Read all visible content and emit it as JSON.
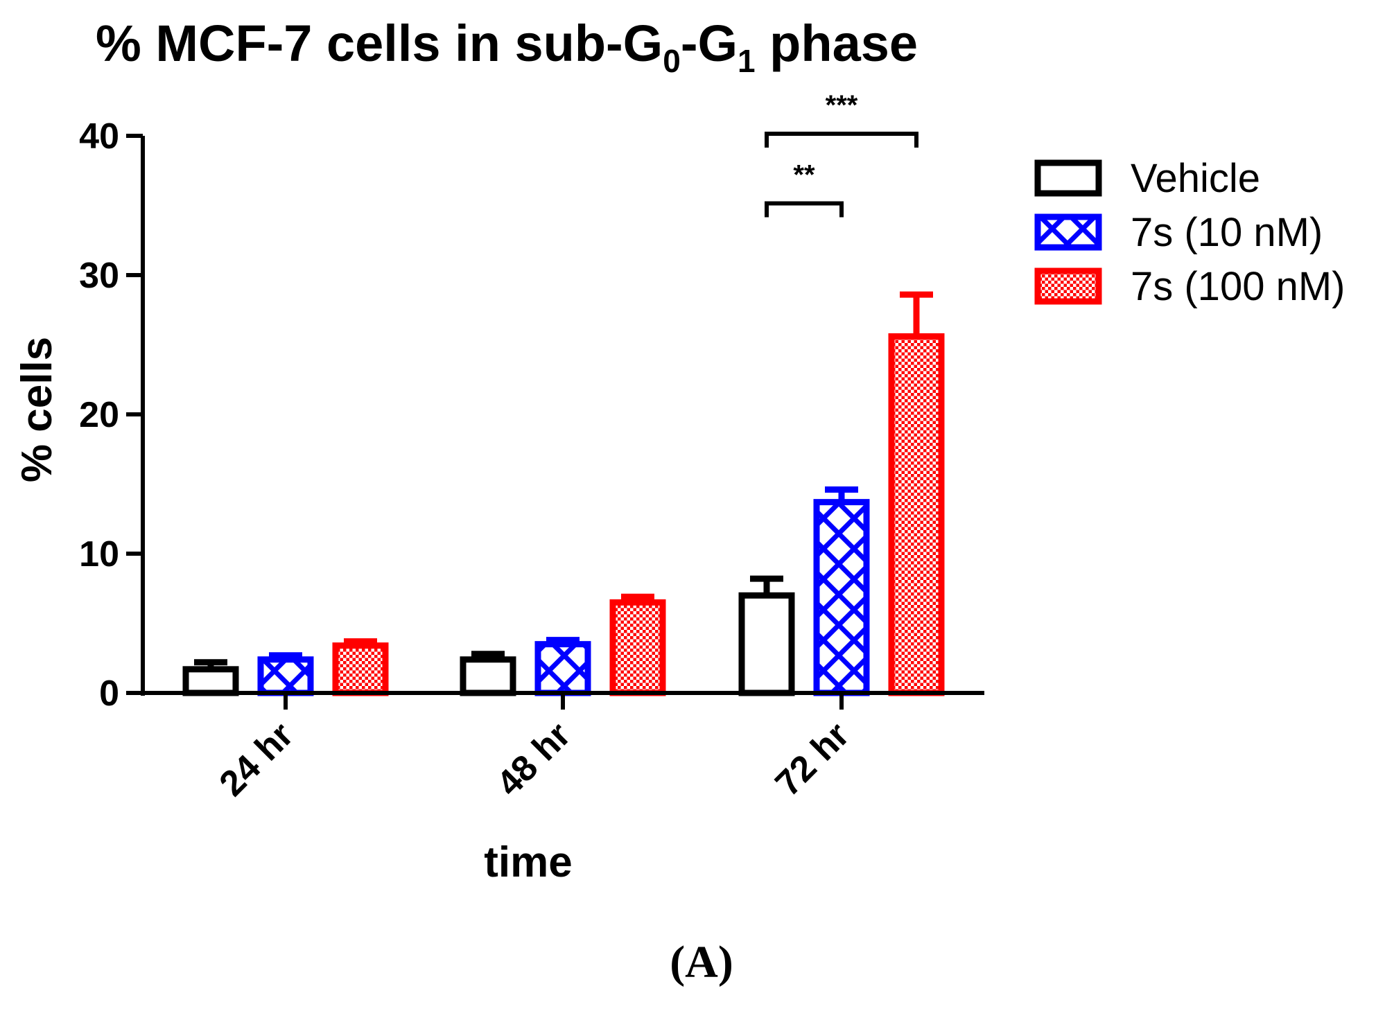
{
  "chart_data": {
    "type": "bar",
    "title": {
      "prefix": "% MCF-7 cells in sub-G",
      "sub1": "0",
      "middle": "-G",
      "sub2": "1",
      "suffix": " phase"
    },
    "xlabel": "time",
    "ylabel": "% cells",
    "ylim": [
      0,
      40
    ],
    "yticks": [
      0,
      10,
      20,
      30,
      40
    ],
    "categories": [
      "24 hr",
      "48 hr",
      "72 hr"
    ],
    "series": [
      {
        "name": "Vehicle",
        "color": "#000000",
        "pattern": "none",
        "values": [
          1.7,
          2.4,
          7.0
        ],
        "errors": [
          0.5,
          0.4,
          1.2
        ]
      },
      {
        "name": "7s (10 nM)",
        "color": "#0000ff",
        "pattern": "crosshatch",
        "values": [
          2.4,
          3.5,
          13.7
        ],
        "errors": [
          0.3,
          0.3,
          0.9
        ]
      },
      {
        "name": "7s (100 nM)",
        "color": "#ff0000",
        "pattern": "checker",
        "values": [
          3.4,
          6.5,
          25.6
        ],
        "errors": [
          0.3,
          0.4,
          3.0
        ]
      }
    ],
    "significance": [
      {
        "label": "**",
        "category": "72 hr",
        "from_series": 0,
        "to_series": 1,
        "level": 35.0
      },
      {
        "label": "***",
        "category": "72 hr",
        "from_series": 0,
        "to_series": 2,
        "level": 40.0
      }
    ],
    "legend_position": "right",
    "panel_label": "(A)"
  }
}
